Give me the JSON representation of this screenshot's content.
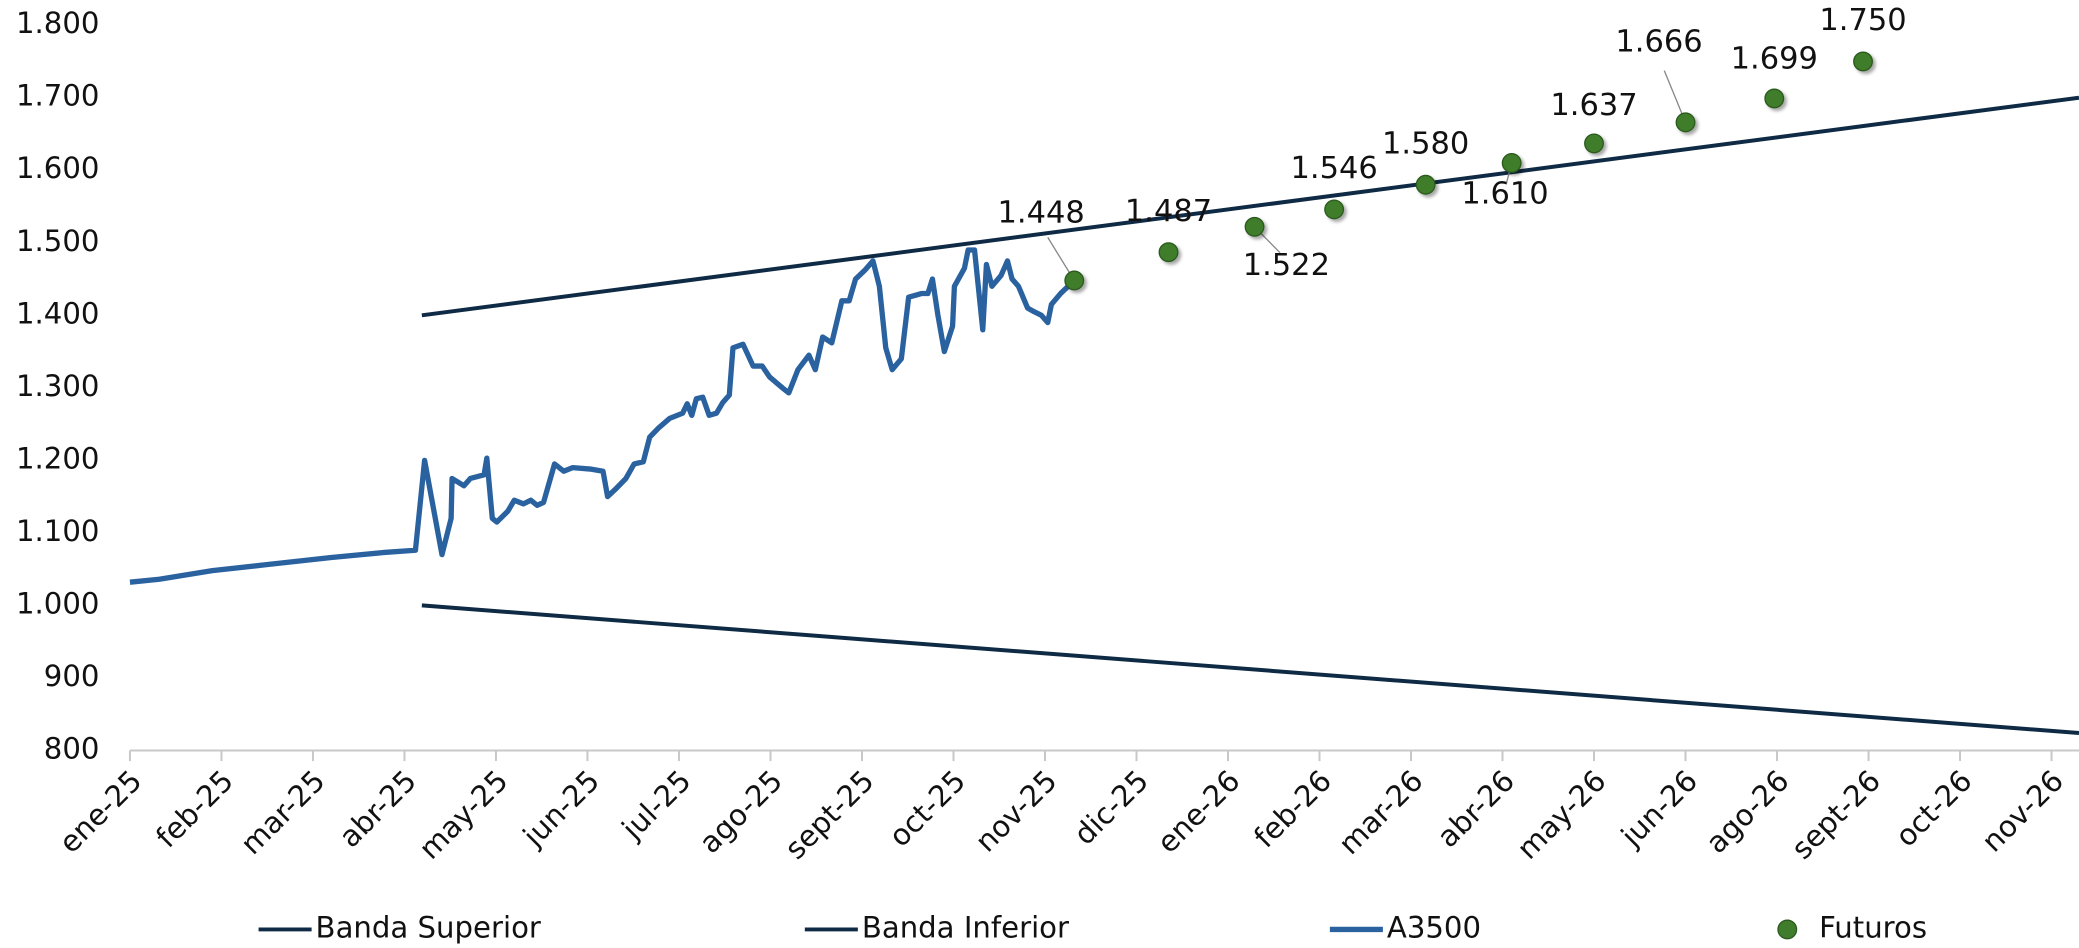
{
  "chart_data": {
    "type": "line",
    "xlim": [
      0,
      21.3
    ],
    "xticks": [
      {
        "value": 0,
        "label": "ene-25"
      },
      {
        "value": 1,
        "label": "feb-25"
      },
      {
        "value": 2,
        "label": "mar-25"
      },
      {
        "value": 3,
        "label": "abr-25"
      },
      {
        "value": 4,
        "label": "may-25"
      },
      {
        "value": 5,
        "label": "jun-25"
      },
      {
        "value": 6,
        "label": "jul-25"
      },
      {
        "value": 7,
        "label": "ago-25"
      },
      {
        "value": 8,
        "label": "sept-25"
      },
      {
        "value": 9,
        "label": "oct-25"
      },
      {
        "value": 10,
        "label": "nov-25"
      },
      {
        "value": 11,
        "label": "dic-25"
      },
      {
        "value": 12,
        "label": "ene-26"
      },
      {
        "value": 13,
        "label": "feb-26"
      },
      {
        "value": 14,
        "label": "mar-26"
      },
      {
        "value": 15,
        "label": "abr-26"
      },
      {
        "value": 16,
        "label": "may-26"
      },
      {
        "value": 17,
        "label": "jun-26"
      },
      {
        "value": 18,
        "label": "ago-26"
      },
      {
        "value": 19,
        "label": "sept-26"
      },
      {
        "value": 20,
        "label": "oct-26"
      },
      {
        "value": 21,
        "label": "nov-26"
      }
    ],
    "ylim": [
      800,
      1800
    ],
    "yticks": [
      {
        "value": 800,
        "label": "800"
      },
      {
        "value": 900,
        "label": "900"
      },
      {
        "value": 1000,
        "label": "1.000"
      },
      {
        "value": 1100,
        "label": "1.100"
      },
      {
        "value": 1200,
        "label": "1.200"
      },
      {
        "value": 1300,
        "label": "1.300"
      },
      {
        "value": 1400,
        "label": "1.400"
      },
      {
        "value": 1500,
        "label": "1.500"
      },
      {
        "value": 1600,
        "label": "1.600"
      },
      {
        "value": 1700,
        "label": "1.700"
      },
      {
        "value": 1800,
        "label": "1.800"
      }
    ],
    "grid": false,
    "legend": "bottom",
    "series": [
      {
        "name": "Banda Superior",
        "type": "line",
        "color": "#0f2a44",
        "x": [
          3.19,
          21.3
        ],
        "values": [
          1400,
          1700
        ]
      },
      {
        "name": "Banda Inferior",
        "type": "line",
        "color": "#0f2a44",
        "x": [
          3.19,
          21.3
        ],
        "values": [
          1000,
          824
        ]
      },
      {
        "name": "A3500",
        "type": "line",
        "color": "#2a62a0",
        "x": [
          0,
          0.32,
          0.9,
          1.48,
          2.2,
          2.78,
          3.12,
          3.22,
          3.41,
          3.51,
          3.52,
          3.65,
          3.72,
          3.87,
          3.9,
          3.96,
          4.01,
          4.13,
          4.2,
          4.3,
          4.38,
          4.45,
          4.52,
          4.64,
          4.74,
          4.84,
          5.03,
          5.17,
          5.22,
          5.32,
          5.42,
          5.51,
          5.61,
          5.68,
          5.78,
          5.9,
          6.04,
          6.09,
          6.14,
          6.19,
          6.26,
          6.33,
          6.41,
          6.48,
          6.55,
          6.59,
          6.7,
          6.81,
          6.91,
          6.99,
          7.13,
          7.2,
          7.3,
          7.42,
          7.49,
          7.57,
          7.67,
          7.78,
          7.86,
          7.93,
          8.03,
          8.12,
          8.19,
          8.26,
          8.33,
          8.43,
          8.51,
          8.65,
          8.72,
          8.77,
          8.83,
          8.9,
          8.99,
          9.01,
          9.12,
          9.16,
          9.23,
          9.32,
          9.36,
          9.42,
          9.52,
          9.59,
          9.64,
          9.71,
          9.81,
          9.88,
          9.96,
          10.03,
          10.07,
          10.17,
          10.32
        ],
        "values": [
          1032,
          1036,
          1048,
          1056,
          1066,
          1073,
          1076,
          1200,
          1070,
          1120,
          1175,
          1165,
          1175,
          1180,
          1203,
          1120,
          1115,
          1130,
          1145,
          1140,
          1145,
          1138,
          1142,
          1195,
          1185,
          1190,
          1188,
          1185,
          1150,
          1162,
          1175,
          1195,
          1198,
          1232,
          1245,
          1258,
          1265,
          1278,
          1262,
          1285,
          1287,
          1262,
          1265,
          1280,
          1290,
          1355,
          1360,
          1330,
          1330,
          1315,
          1300,
          1293,
          1325,
          1345,
          1325,
          1370,
          1362,
          1420,
          1420,
          1450,
          1462,
          1475,
          1440,
          1355,
          1325,
          1340,
          1425,
          1430,
          1430,
          1450,
          1400,
          1350,
          1385,
          1440,
          1465,
          1490,
          1490,
          1380,
          1470,
          1440,
          1455,
          1475,
          1450,
          1440,
          1410,
          1405,
          1400,
          1390,
          1415,
          1430,
          1448
        ]
      },
      {
        "name": "Futuros",
        "type": "scatter",
        "color": "#3f7d2c",
        "x": [
          10.32,
          11.35,
          12.29,
          13.16,
          14.16,
          15.1,
          16.0,
          17.0,
          17.97,
          18.94
        ],
        "values": [
          1448,
          1487,
          1522,
          1546,
          1580,
          1610,
          1637,
          1666,
          1699,
          1750
        ],
        "value_labels": [
          "1.448",
          "1.487",
          "1.522",
          "1.546",
          "1.580",
          "1.610",
          "1.637",
          "1.666",
          "1.699",
          "1.750"
        ]
      }
    ]
  }
}
